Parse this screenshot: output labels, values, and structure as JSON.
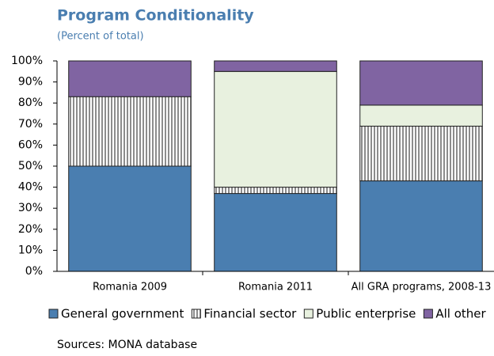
{
  "chart_data": {
    "type": "stacked_bar",
    "title": "Program Conditionality",
    "subtitle": "(Percent of total)",
    "categories": [
      "Romania 2009",
      "Romania 2011",
      "All GRA programs, 2008-13"
    ],
    "series": [
      {
        "name": "General government",
        "color": "#4a7eb0",
        "values": [
          50,
          37,
          43
        ]
      },
      {
        "name": "Financial sector",
        "color": "#8c8c8c",
        "values": [
          33,
          3,
          26
        ]
      },
      {
        "name": "Public enterprise",
        "color": "#e8f1df",
        "values": [
          0,
          55,
          10
        ]
      },
      {
        "name": "All other",
        "color": "#8064a2",
        "values": [
          17,
          5,
          21
        ]
      }
    ],
    "ylim": [
      0,
      100
    ],
    "yticks": [
      {
        "value": 0,
        "label": "0%"
      },
      {
        "value": 10,
        "label": "10%"
      },
      {
        "value": 20,
        "label": "20%"
      },
      {
        "value": 30,
        "label": "30%"
      },
      {
        "value": 40,
        "label": "40%"
      },
      {
        "value": 50,
        "label": "50%"
      },
      {
        "value": 60,
        "label": "60%"
      },
      {
        "value": 70,
        "label": "70%"
      },
      {
        "value": 80,
        "label": "80%"
      },
      {
        "value": 90,
        "label": "90%"
      },
      {
        "value": 100,
        "label": "100%"
      }
    ],
    "source": "Sources: MONA database"
  }
}
